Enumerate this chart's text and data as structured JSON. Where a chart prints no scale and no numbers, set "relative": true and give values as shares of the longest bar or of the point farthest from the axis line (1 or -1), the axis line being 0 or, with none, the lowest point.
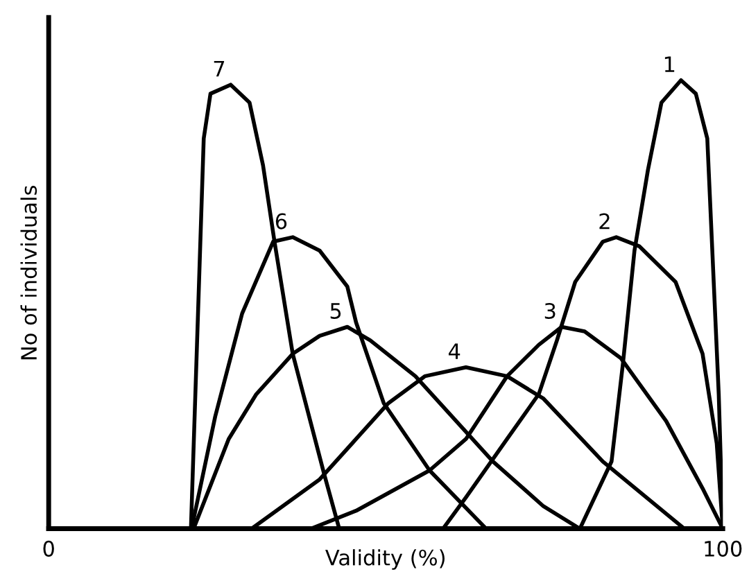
{
  "chart_data": {
    "type": "line",
    "relative": true,
    "xlabel": "Validity (%)",
    "ylabel": "No of individuals",
    "xlim": [
      0,
      100
    ],
    "xticks": [
      0,
      100
    ],
    "grid": false,
    "legend": false,
    "marker": "none",
    "line_style": "solid",
    "series": [
      {
        "name": "1",
        "color": "#000000",
        "x": [
          78.8,
          83.5,
          85.2,
          86.9,
          88.9,
          90.9,
          93.8,
          96.0,
          97.7,
          99.4,
          100
        ],
        "values": [
          0,
          0.15,
          0.37,
          0.62,
          0.8,
          0.95,
          1.0,
          0.97,
          0.87,
          0.3,
          0
        ]
      },
      {
        "name": "2",
        "color": "#000000",
        "x": [
          58.5,
          61.9,
          68.0,
          72.7,
          75.4,
          78.1,
          82.2,
          84.2,
          87.6,
          93.0,
          97.0,
          99.1,
          100
        ],
        "values": [
          0,
          0.07,
          0.2,
          0.3,
          0.42,
          0.55,
          0.64,
          0.65,
          0.63,
          0.55,
          0.39,
          0.19,
          0
        ]
      },
      {
        "name": "3",
        "color": "#000000",
        "x": [
          38.9,
          45.6,
          56.5,
          61.9,
          68.0,
          72.7,
          76.1,
          79.5,
          84.9,
          91.6,
          97.0,
          100
        ],
        "values": [
          0,
          0.04,
          0.13,
          0.2,
          0.34,
          0.41,
          0.45,
          0.44,
          0.38,
          0.24,
          0.09,
          0
        ]
      },
      {
        "name": "4",
        "color": "#000000",
        "x": [
          30.1,
          40.2,
          45.6,
          50.4,
          55.8,
          61.9,
          68.0,
          73.4,
          82.2,
          94.3
        ],
        "values": [
          0,
          0.11,
          0.2,
          0.28,
          0.34,
          0.36,
          0.34,
          0.29,
          0.15,
          0
        ]
      },
      {
        "name": "5",
        "color": "#000000",
        "x": [
          21.5,
          26.7,
          30.8,
          36.2,
          40.2,
          44.3,
          47.7,
          54.4,
          65.9,
          73.4,
          78.8
        ],
        "values": [
          0,
          0.2,
          0.3,
          0.39,
          0.43,
          0.45,
          0.42,
          0.34,
          0.15,
          0.05,
          0
        ]
      },
      {
        "name": "6",
        "color": "#000000",
        "x": [
          21.2,
          24.7,
          28.7,
          33.3,
          36.2,
          40.2,
          44.3,
          45.6,
          49.7,
          56.5,
          64.9
        ],
        "values": [
          0,
          0.25,
          0.48,
          0.64,
          0.65,
          0.62,
          0.54,
          0.46,
          0.28,
          0.13,
          0
        ]
      },
      {
        "name": "7",
        "color": "#000000",
        "x": [
          21.1,
          22.0,
          23.0,
          24.0,
          27.0,
          29.8,
          31.8,
          33.5,
          36.2,
          40.9,
          43.1
        ],
        "values": [
          0,
          0.41,
          0.87,
          0.97,
          0.99,
          0.95,
          0.81,
          0.64,
          0.39,
          0.12,
          0
        ]
      }
    ]
  }
}
